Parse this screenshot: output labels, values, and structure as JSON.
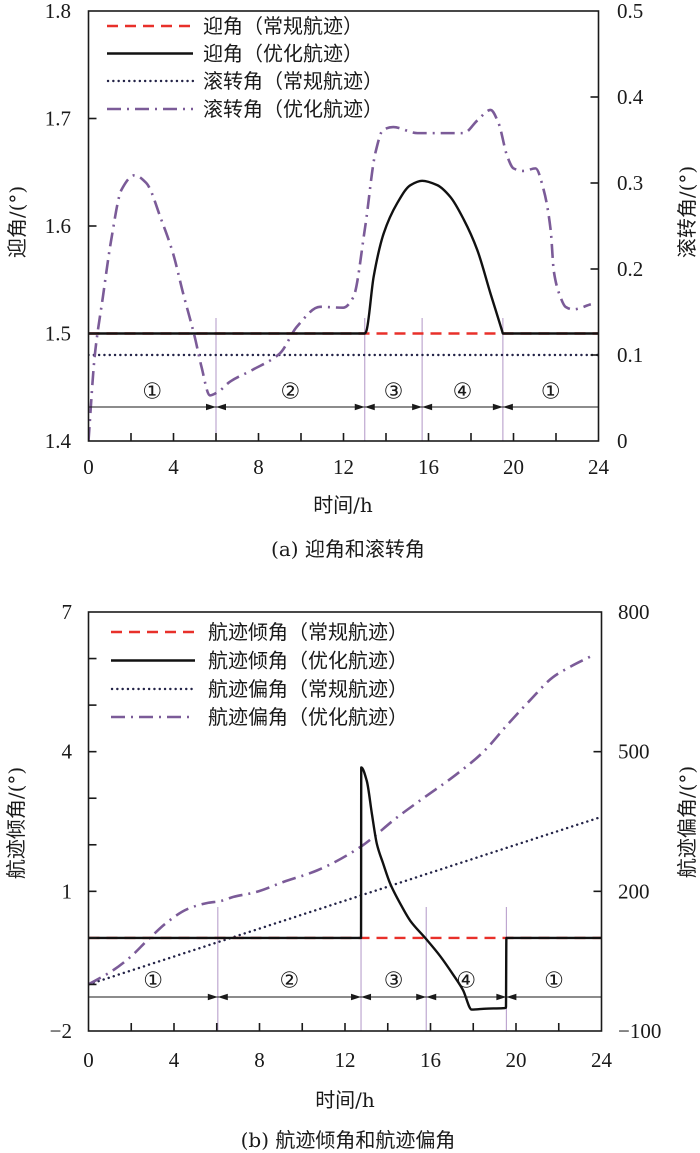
{
  "chart_data": [
    {
      "type": "line",
      "title": "(a) 迎角和滚转角",
      "xlabel": "时间/h",
      "ylabel": "迎角/(°)",
      "y2label": "滚转角/(°)",
      "xlim": [
        0,
        24
      ],
      "ylim": [
        1.4,
        1.8
      ],
      "y2lim": [
        0,
        0.5
      ],
      "xticks": {
        "values": [
          0,
          4,
          8,
          12,
          16,
          20,
          24
        ],
        "labels": [
          "0",
          "4",
          "8",
          "12",
          "16",
          "20",
          "24"
        ],
        "minor_step": 2
      },
      "yticks": {
        "values": [
          1.4,
          1.5,
          1.6,
          1.7,
          1.8
        ],
        "labels": [
          "1.4",
          "1.5",
          "1.6",
          "1.7",
          "1.8"
        ]
      },
      "y2ticks": {
        "values": [
          0,
          0.1,
          0.2,
          0.3,
          0.4,
          0.5
        ],
        "labels": [
          "0",
          "0.1",
          "0.2",
          "0.3",
          "0.4",
          "0.5"
        ]
      },
      "grid": false,
      "legend": "top-left",
      "series": [
        {
          "name": "迎角（常规航迹）",
          "axis": "left",
          "style": "dashed",
          "color": "#e8302a",
          "points": [
            [
              0,
              1.5
            ],
            [
              24,
              1.5
            ]
          ]
        },
        {
          "name": "迎角（优化航迹）",
          "axis": "left",
          "style": "solid",
          "color": "#111111",
          "points": [
            [
              0,
              1.5
            ],
            [
              13.0,
              1.5
            ],
            [
              13.07,
              1.502
            ],
            [
              13.42,
              1.553
            ],
            [
              13.89,
              1.593
            ],
            [
              14.52,
              1.621
            ],
            [
              15.15,
              1.638
            ],
            [
              15.7,
              1.642
            ],
            [
              16.41,
              1.638
            ],
            [
              17.03,
              1.627
            ],
            [
              17.66,
              1.606
            ],
            [
              18.29,
              1.578
            ],
            [
              18.92,
              1.537
            ],
            [
              19.47,
              1.502
            ],
            [
              19.5,
              1.5
            ],
            [
              24,
              1.5
            ]
          ]
        },
        {
          "name": "滚转角（常规航迹）",
          "axis": "right",
          "style": "dotted",
          "color": "#232347",
          "points": [
            [
              0,
              0.1
            ],
            [
              24,
              0.1
            ]
          ]
        },
        {
          "name": "滚转角（优化航迹）",
          "axis": "right",
          "style": "dashdot",
          "color": "#7b5b98",
          "points": [
            [
              0,
              0
            ],
            [
              0.29,
              0.098
            ],
            [
              0.68,
              0.168
            ],
            [
              1.07,
              0.234
            ],
            [
              1.55,
              0.292
            ],
            [
              2.17,
              0.309
            ],
            [
              2.72,
              0.3
            ],
            [
              3.43,
              0.257
            ],
            [
              3.98,
              0.218
            ],
            [
              4.45,
              0.172
            ],
            [
              5.0,
              0.121
            ],
            [
              5.32,
              0.086
            ],
            [
              5.71,
              0.053
            ],
            [
              6.09,
              0.057
            ],
            [
              6.66,
              0.069
            ],
            [
              7.74,
              0.083
            ],
            [
              9.01,
              0.102
            ],
            [
              9.81,
              0.133
            ],
            [
              10.9,
              0.156
            ],
            [
              11.99,
              0.155
            ],
            [
              12.46,
              0.167
            ],
            [
              13.02,
              0.249
            ],
            [
              13.5,
              0.335
            ],
            [
              13.87,
              0.362
            ],
            [
              14.34,
              0.365
            ],
            [
              15.48,
              0.358
            ],
            [
              17.65,
              0.358
            ],
            [
              18.31,
              0.373
            ],
            [
              18.92,
              0.385
            ],
            [
              19.29,
              0.37
            ],
            [
              19.72,
              0.33
            ],
            [
              20.0,
              0.317
            ],
            [
              20.47,
              0.314
            ],
            [
              21.04,
              0.317
            ],
            [
              21.42,
              0.292
            ],
            [
              21.75,
              0.245
            ],
            [
              21.9,
              0.197
            ],
            [
              22.2,
              0.168
            ],
            [
              22.45,
              0.156
            ],
            [
              22.8,
              0.153
            ],
            [
              23.64,
              0.159
            ]
          ]
        }
      ],
      "phases": [
        {
          "label": "①",
          "start": 0,
          "end": 6
        },
        {
          "label": "②",
          "start": 6,
          "end": 13
        },
        {
          "label": "③",
          "start": 13,
          "end": 15.7
        },
        {
          "label": "④",
          "start": 15.7,
          "end": 19.5
        },
        {
          "label": "①",
          "start": 19.5,
          "end": 24
        }
      ]
    },
    {
      "type": "line",
      "title": "(b) 航迹倾角和航迹偏角",
      "xlabel": "时间/h",
      "ylabel": "航迹倾角/(°)",
      "y2label": "航迹偏角/(°)",
      "xlim": [
        0,
        24
      ],
      "ylim": [
        -2,
        7
      ],
      "y2lim": [
        -100,
        800
      ],
      "xticks": {
        "values": [
          0,
          4,
          8,
          12,
          16,
          20,
          24
        ],
        "labels": [
          "0",
          "4",
          "8",
          "12",
          "16",
          "20",
          "24"
        ],
        "minor_step": 2
      },
      "yticks": {
        "values": [
          -2,
          1,
          4,
          7
        ],
        "labels": [
          "−2",
          "1",
          "4",
          "7"
        ],
        "minor_step": 1
      },
      "y2ticks": {
        "values": [
          -100,
          200,
          500,
          800
        ],
        "labels": [
          "−100",
          "200",
          "500",
          "800"
        ]
      },
      "grid": false,
      "legend": "top-left",
      "series": [
        {
          "name": "航迹倾角（常规航迹）",
          "axis": "left",
          "style": "dashed",
          "color": "#e8302a",
          "points": [
            [
              0,
              0
            ],
            [
              24,
              0
            ]
          ]
        },
        {
          "name": "航迹倾角（优化航迹）",
          "axis": "left",
          "style": "solid",
          "color": "#111111",
          "points": [
            [
              0,
              0
            ],
            [
              12.75,
              0
            ],
            [
              12.76,
              3.66
            ],
            [
              13.02,
              3.37
            ],
            [
              13.26,
              2.66
            ],
            [
              13.49,
              2.02
            ],
            [
              13.79,
              1.59
            ],
            [
              14.11,
              1.17
            ],
            [
              14.58,
              0.74
            ],
            [
              15.05,
              0.37
            ],
            [
              15.75,
              0
            ],
            [
              16.45,
              -0.39
            ],
            [
              17.06,
              -0.79
            ],
            [
              17.52,
              -1.12
            ],
            [
              17.93,
              -1.54
            ],
            [
              18.6,
              -1.52
            ],
            [
              19.39,
              -1.51
            ],
            [
              19.53,
              -1.5
            ],
            [
              19.55,
              0
            ],
            [
              24,
              0
            ]
          ]
        },
        {
          "name": "航迹偏角（常规航迹）",
          "axis": "right",
          "style": "dotted",
          "color": "#232347",
          "points": [
            [
              0,
              0
            ],
            [
              24,
              360
            ]
          ]
        },
        {
          "name": "航迹偏角（优化航迹）",
          "axis": "right",
          "style": "dashdot",
          "color": "#7b5b98",
          "points": [
            [
              0,
              0
            ],
            [
              1.17,
              31
            ],
            [
              1.96,
              59
            ],
            [
              2.76,
              95
            ],
            [
              3.69,
              134
            ],
            [
              4.63,
              162
            ],
            [
              5.56,
              175
            ],
            [
              6.17,
              179
            ],
            [
              6.78,
              188
            ],
            [
              7.8,
              198
            ],
            [
              9.11,
              220
            ],
            [
              10.7,
              245
            ],
            [
              12.71,
              295
            ],
            [
              14.44,
              359
            ],
            [
              15.75,
              403
            ],
            [
              17.06,
              446
            ],
            [
              18.46,
              499
            ],
            [
              19.58,
              557
            ],
            [
              20.65,
              610
            ],
            [
              21.73,
              660
            ],
            [
              22.52,
              682
            ],
            [
              23.6,
              707
            ]
          ]
        }
      ],
      "phases": [
        {
          "label": "①",
          "start": 0,
          "end": 6.05
        },
        {
          "label": "②",
          "start": 6.05,
          "end": 12.75
        },
        {
          "label": "③",
          "start": 12.75,
          "end": 15.8
        },
        {
          "label": "④",
          "start": 15.8,
          "end": 19.55
        },
        {
          "label": "①",
          "start": 19.55,
          "end": 24
        }
      ]
    }
  ]
}
